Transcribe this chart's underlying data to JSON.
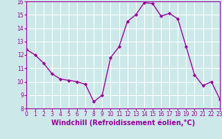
{
  "x": [
    0,
    1,
    2,
    3,
    4,
    5,
    6,
    7,
    8,
    9,
    10,
    11,
    12,
    13,
    14,
    15,
    16,
    17,
    18,
    19,
    20,
    21,
    22,
    23
  ],
  "y": [
    12.4,
    12.0,
    11.4,
    10.6,
    10.2,
    10.1,
    10.0,
    9.8,
    8.5,
    9.0,
    11.8,
    12.6,
    14.5,
    15.0,
    15.9,
    15.85,
    14.9,
    15.1,
    14.7,
    12.6,
    10.5,
    9.7,
    10.0,
    8.7
  ],
  "line_color": "#990099",
  "marker": "D",
  "marker_size": 2.2,
  "bg_color": "#cce8e8",
  "grid_color": "#ffffff",
  "xlabel": "Windchill (Refroidissement éolien,°C)",
  "ylim": [
    8,
    16
  ],
  "xlim": [
    0,
    23
  ],
  "yticks": [
    8,
    9,
    10,
    11,
    12,
    13,
    14,
    15,
    16
  ],
  "xticks": [
    0,
    1,
    2,
    3,
    4,
    5,
    6,
    7,
    8,
    9,
    10,
    11,
    12,
    13,
    14,
    15,
    16,
    17,
    18,
    19,
    20,
    21,
    22,
    23
  ],
  "tick_label_fontsize": 5.5,
  "xlabel_fontsize": 7.0,
  "line_width": 1.0,
  "axes_border_color": "#990099"
}
